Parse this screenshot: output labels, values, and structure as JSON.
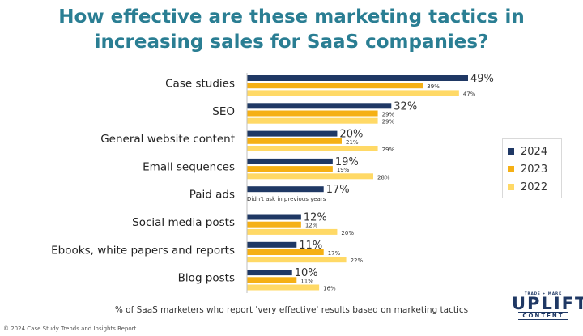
{
  "title_line1": "How effective are these marketing tactics in",
  "title_line2": "increasing sales for SaaS companies?",
  "caption": "% of SaaS marketers who report 'very effective' results based on marketing tactics",
  "copyright": "© 2024 Case Study Trends and Insights Report",
  "logo": {
    "tagline": "TRADE ✦ MARK",
    "main": "UPLIFT",
    "sub": "CONTENT"
  },
  "colors": {
    "2024": "#1f3864",
    "2023": "#f5b015",
    "2022": "#ffd966"
  },
  "chart_data": {
    "type": "bar",
    "orientation": "horizontal",
    "categories": [
      "Case studies",
      "SEO",
      "General website content",
      "Email sequences",
      "Paid ads",
      "Social media posts",
      "Ebooks, white papers and reports",
      "Blog posts"
    ],
    "series": [
      {
        "name": "2024",
        "values": [
          49,
          32,
          20,
          19,
          17,
          12,
          11,
          10
        ]
      },
      {
        "name": "2023",
        "values": [
          39,
          29,
          21,
          19,
          null,
          12,
          17,
          11
        ]
      },
      {
        "name": "2022",
        "values": [
          47,
          29,
          29,
          28,
          null,
          20,
          22,
          16
        ]
      }
    ],
    "notes": [
      {
        "category": "Paid ads",
        "text": "Didn't ask in previous years"
      }
    ],
    "xlim": [
      0,
      50
    ],
    "legend": "right",
    "grid": false
  }
}
